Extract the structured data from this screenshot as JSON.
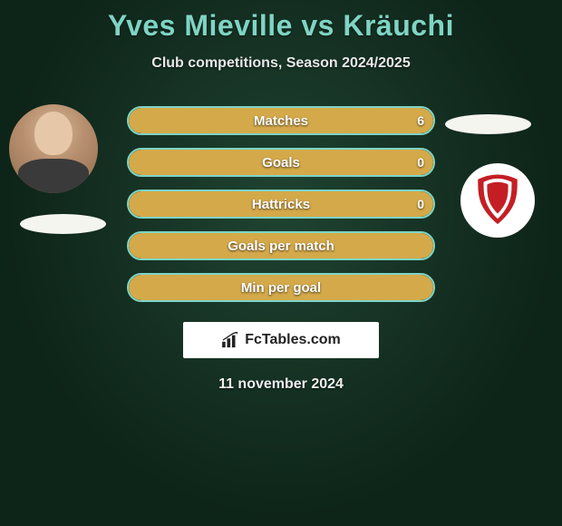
{
  "title": "Yves Mieville vs Kräuchi",
  "subtitle": "Club competitions, Season 2024/2025",
  "date": "11 november 2024",
  "fctables_label": "FcTables.com",
  "colors": {
    "title_color": "#7fd4c4",
    "stat_border": "#7fd4c4",
    "fill_color": "#d4a94a",
    "bg_dark": "#1a3a2a",
    "ellipse": "#f5f5f0"
  },
  "stats": [
    {
      "label": "Matches",
      "right_value": "6",
      "fill_pct": 100,
      "show_right": true
    },
    {
      "label": "Goals",
      "right_value": "0",
      "fill_pct": 100,
      "show_right": true
    },
    {
      "label": "Hattricks",
      "right_value": "0",
      "fill_pct": 100,
      "show_right": true
    },
    {
      "label": "Goals per match",
      "right_value": "",
      "fill_pct": 100,
      "show_right": false
    },
    {
      "label": "Min per goal",
      "right_value": "",
      "fill_pct": 100,
      "show_right": false
    }
  ],
  "crest": {
    "shield_fill": "#c41e24",
    "shield_stroke": "#ffffff"
  }
}
